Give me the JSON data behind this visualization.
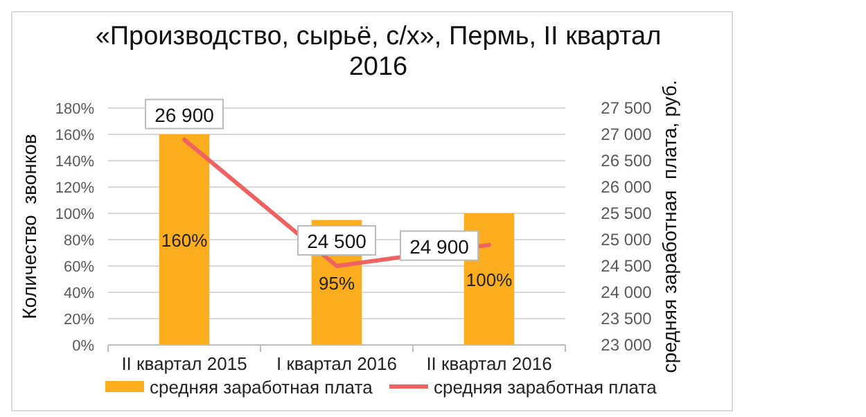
{
  "chart_data": {
    "type": "bar",
    "title": "«Производство, сырьё, с/х», Пермь, II квартал 2016",
    "ylabel": "Количество  звонков",
    "y2label": "средняя заработная  плата, руб.",
    "categories": [
      "II квартал 2015",
      "I квартал 2016",
      "II квартал 2016"
    ],
    "series": [
      {
        "name": "средняя заработная плата",
        "color": "#fbad1d",
        "values": [
          160,
          95,
          100
        ],
        "value_labels": [
          "160%",
          "95%",
          "100%"
        ]
      },
      {
        "name": "средняя заработная плата",
        "type": "line",
        "axis": "y2",
        "color": "#f0625f",
        "values": [
          26900,
          24500,
          24900
        ],
        "value_labels": [
          "26 900",
          "24 500",
          "24 900"
        ]
      }
    ],
    "ylim": [
      0,
      180
    ],
    "yticks": [
      {
        "value": 0,
        "label": "0%"
      },
      {
        "value": 20,
        "label": "20%"
      },
      {
        "value": 40,
        "label": "40%"
      },
      {
        "value": 60,
        "label": "60%"
      },
      {
        "value": 80,
        "label": "80%"
      },
      {
        "value": 100,
        "label": "100%"
      },
      {
        "value": 120,
        "label": "120%"
      },
      {
        "value": 140,
        "label": "140%"
      },
      {
        "value": 160,
        "label": "160%"
      },
      {
        "value": 180,
        "label": "180%"
      }
    ],
    "y2lim": [
      23000,
      27500
    ],
    "y2ticks": [
      {
        "value": 23000,
        "label": "23 000"
      },
      {
        "value": 23500,
        "label": "23 500"
      },
      {
        "value": 24000,
        "label": "24 000"
      },
      {
        "value": 24500,
        "label": "24 500"
      },
      {
        "value": 25000,
        "label": "25 000"
      },
      {
        "value": 25500,
        "label": "25 500"
      },
      {
        "value": 26000,
        "label": "26 000"
      },
      {
        "value": 26500,
        "label": "26 500"
      },
      {
        "value": 27000,
        "label": "27 000"
      },
      {
        "value": 27500,
        "label": "27 500"
      }
    ],
    "grid": "y",
    "legend": "bottom"
  }
}
